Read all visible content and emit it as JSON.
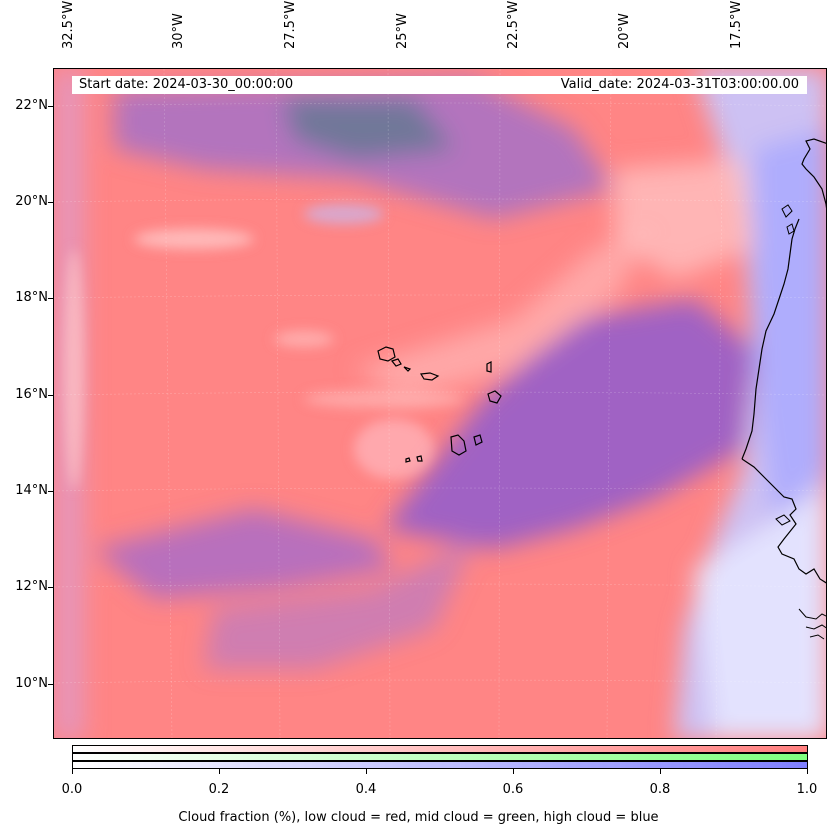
{
  "map": {
    "lon_labels": [
      "32.5°W",
      "30°W",
      "27.5°W",
      "25°W",
      "22.5°W",
      "20°W",
      "17.5°W"
    ],
    "lat_labels": [
      "22°N",
      "20°N",
      "18°N",
      "16°N",
      "14°N",
      "12°N",
      "10°N"
    ],
    "colors": {
      "low_cloud": "#ff7f7f",
      "mid_cloud": "#7fff7f",
      "high_cloud": "#7f7fff",
      "mixed_low_high": "#9a5fd0",
      "coastline": "#000000"
    }
  },
  "header": {
    "start_date": "Start date: 2024-03-30_00:00:00",
    "valid_date": "Valid_date: 2024-03-31T03:00:00.00"
  },
  "colorbar": {
    "ticks": [
      "0.0",
      "0.2",
      "0.4",
      "0.6",
      "0.8",
      "1.0"
    ],
    "caption": "Cloud fraction (%), low cloud = red, mid cloud = green, high cloud = blue",
    "bars": [
      {
        "name": "low",
        "color": "#ff7f7f"
      },
      {
        "name": "mid",
        "color": "#7fff7f"
      },
      {
        "name": "high",
        "color": "#7f7fff"
      }
    ]
  }
}
